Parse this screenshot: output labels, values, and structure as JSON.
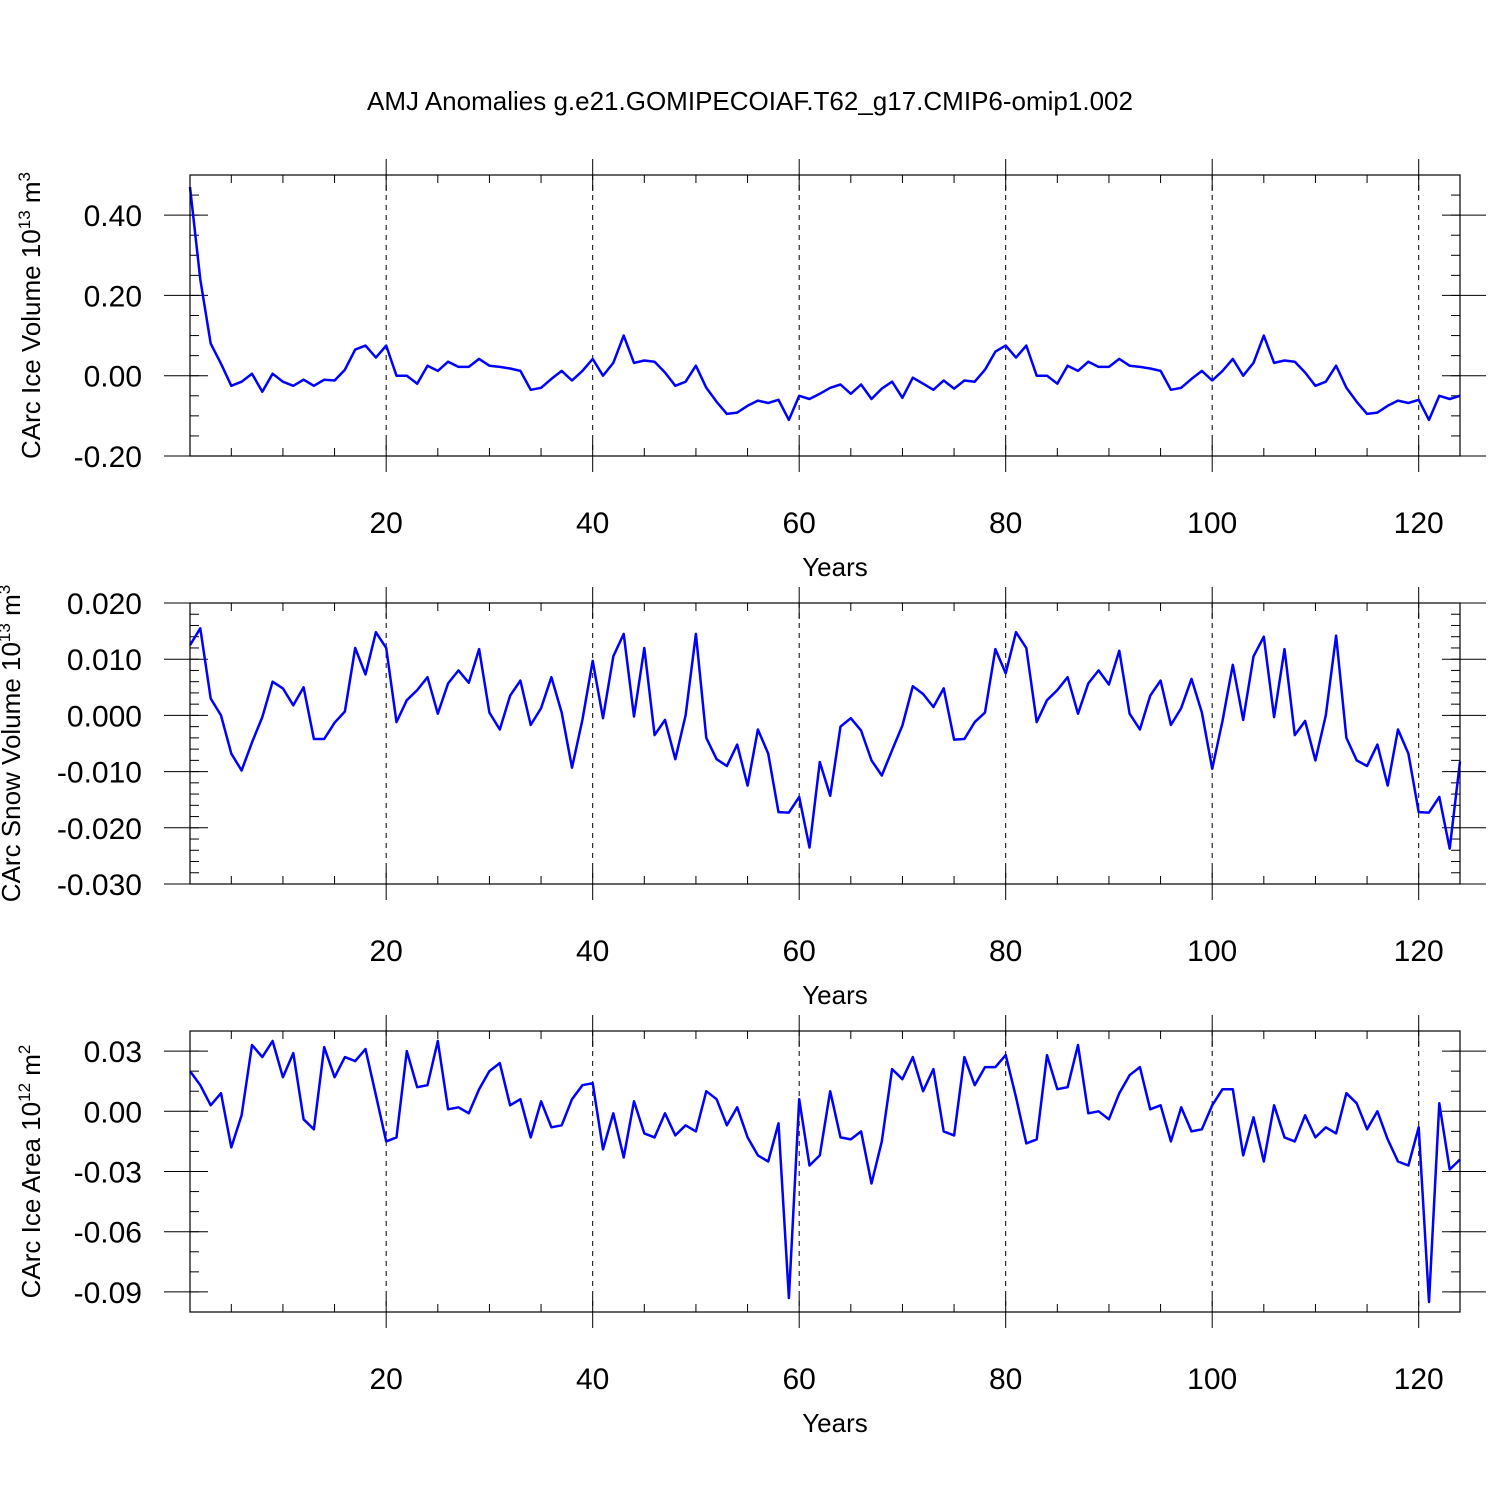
{
  "figure": {
    "title": "AMJ Anomalies g.e21.GOMIPECOIAF.T62_g17.CMIP6-omip1.002"
  },
  "chart_data": [
    {
      "type": "line",
      "title": "AMJ Anomalies g.e21.GOMIPECOIAF.T62_g17.CMIP6-omip1.002",
      "xlabel": "Years",
      "ylabel": "CArc Ice Volume 10^13 m^3",
      "ylabel_base": "CArc Ice Volume 10",
      "ylabel_exp": "13",
      "ylabel_unit": "m",
      "ylabel_unit_exp": "3",
      "xlim": [
        1,
        124
      ],
      "ylim": [
        -0.2,
        0.5
      ],
      "xticks": [
        20,
        40,
        60,
        80,
        100,
        120
      ],
      "xtick_labels": [
        "20",
        "40",
        "60",
        "80",
        "100",
        "120"
      ],
      "yticks": [
        -0.2,
        0.0,
        0.2,
        0.4
      ],
      "ytick_labels": [
        "-0.20",
        "0.00",
        "0.20",
        "0.40"
      ],
      "color": "#0000ff",
      "grid": "vertical dashed at major x ticks",
      "x": [
        1,
        2,
        3,
        4,
        5,
        6,
        7,
        8,
        9,
        10,
        11,
        12,
        13,
        14,
        15,
        16,
        17,
        18,
        19,
        20,
        21,
        22,
        23,
        24,
        25,
        26,
        27,
        28,
        29,
        30,
        31,
        32,
        33,
        34,
        35,
        36,
        37,
        38,
        39,
        40,
        41,
        42,
        43,
        44,
        45,
        46,
        47,
        48,
        49,
        50,
        51,
        52,
        53,
        54,
        55,
        56,
        57,
        58,
        59,
        60,
        61,
        62,
        63,
        64,
        65,
        66,
        67,
        68,
        69,
        70,
        71,
        72,
        73,
        74,
        75,
        76,
        77,
        78,
        79,
        80,
        81,
        82,
        83,
        84,
        85,
        86,
        87,
        88,
        89,
        90,
        91,
        92,
        93,
        94,
        95,
        96,
        97,
        98,
        99,
        100,
        101,
        102,
        103,
        104,
        105,
        106,
        107,
        108,
        109,
        110,
        111,
        112,
        113,
        114,
        115,
        116,
        117,
        118,
        119,
        120,
        121,
        122,
        123,
        124
      ],
      "values": [
        0.47,
        0.24,
        0.08,
        0.03,
        -0.025,
        -0.015,
        0.005,
        -0.04,
        0.005,
        -0.015,
        -0.025,
        -0.01,
        -0.025,
        -0.01,
        -0.012,
        0.015,
        0.065,
        0.075,
        0.045,
        0.075,
        0.0,
        0.0,
        -0.02,
        0.025,
        0.012,
        0.035,
        0.022,
        0.022,
        0.042,
        0.025,
        0.022,
        0.018,
        0.012,
        -0.035,
        -0.03,
        -0.008,
        0.012,
        -0.012,
        0.012,
        0.042,
        0.0,
        0.032,
        0.1,
        0.032,
        0.038,
        0.035,
        0.008,
        -0.025,
        -0.015,
        0.025,
        -0.03,
        -0.065,
        -0.095,
        -0.092,
        -0.075,
        -0.062,
        -0.068,
        -0.06,
        -0.11,
        -0.05,
        -0.058,
        -0.045,
        -0.03,
        -0.022,
        -0.045,
        -0.022,
        -0.058,
        -0.032,
        -0.015,
        -0.055,
        -0.005,
        -0.02,
        -0.035,
        -0.012,
        -0.032,
        -0.012,
        -0.015,
        0.015,
        0.06,
        0.075,
        0.045,
        0.075,
        0.0,
        0.0,
        -0.02,
        0.025,
        0.012,
        0.035,
        0.022,
        0.022,
        0.042,
        0.025,
        0.022,
        0.018,
        0.012,
        -0.035,
        -0.03,
        -0.008,
        0.012,
        -0.012,
        0.012,
        0.042,
        0.0,
        0.032,
        0.1,
        0.032,
        0.038,
        0.035,
        0.008,
        -0.025,
        -0.015,
        0.025,
        -0.03,
        -0.065,
        -0.095,
        -0.092,
        -0.075,
        -0.062,
        -0.068,
        -0.06,
        -0.11,
        -0.05,
        -0.058,
        -0.05
      ]
    },
    {
      "type": "line",
      "xlabel": "Years",
      "ylabel": "CArc Snow Volume 10^13 m^3",
      "ylabel_base": "CArc Snow Volume 10",
      "ylabel_exp": "13",
      "ylabel_unit": "m",
      "ylabel_unit_exp": "3",
      "xlim": [
        1,
        124
      ],
      "ylim": [
        -0.03,
        0.02
      ],
      "xticks": [
        20,
        40,
        60,
        80,
        100,
        120
      ],
      "xtick_labels": [
        "20",
        "40",
        "60",
        "80",
        "100",
        "120"
      ],
      "yticks": [
        -0.03,
        -0.02,
        -0.01,
        0.0,
        0.01,
        0.02
      ],
      "ytick_labels": [
        "-0.030",
        "-0.020",
        "-0.010",
        "0.000",
        "0.010",
        "0.020"
      ],
      "color": "#0000ff",
      "grid": "vertical dashed at major x ticks",
      "x": [
        1,
        2,
        3,
        4,
        5,
        6,
        7,
        8,
        9,
        10,
        11,
        12,
        13,
        14,
        15,
        16,
        17,
        18,
        19,
        20,
        21,
        22,
        23,
        24,
        25,
        26,
        27,
        28,
        29,
        30,
        31,
        32,
        33,
        34,
        35,
        36,
        37,
        38,
        39,
        40,
        41,
        42,
        43,
        44,
        45,
        46,
        47,
        48,
        49,
        50,
        51,
        52,
        53,
        54,
        55,
        56,
        57,
        58,
        59,
        60,
        61,
        62,
        63,
        64,
        65,
        66,
        67,
        68,
        69,
        70,
        71,
        72,
        73,
        74,
        75,
        76,
        77,
        78,
        79,
        80,
        81,
        82,
        83,
        84,
        85,
        86,
        87,
        88,
        89,
        90,
        91,
        92,
        93,
        94,
        95,
        96,
        97,
        98,
        99,
        100,
        101,
        102,
        103,
        104,
        105,
        106,
        107,
        108,
        109,
        110,
        111,
        112,
        113,
        114,
        115,
        116,
        117,
        118,
        119,
        120,
        121,
        122,
        123,
        124
      ],
      "values": [
        0.0125,
        0.0155,
        0.003,
        0.0,
        -0.0068,
        -0.0098,
        -0.0048,
        -0.0003,
        0.006,
        0.0048,
        0.0018,
        0.005,
        -0.0042,
        -0.0042,
        -0.0013,
        0.0007,
        0.012,
        0.0073,
        0.0148,
        0.012,
        -0.0012,
        0.0027,
        0.0045,
        0.0068,
        0.0003,
        0.0057,
        0.008,
        0.0058,
        0.0118,
        0.0005,
        -0.0025,
        0.0035,
        0.0062,
        -0.0017,
        0.0013,
        0.0068,
        0.0005,
        -0.0093,
        -0.0008,
        0.0097,
        -0.0005,
        0.0105,
        0.0145,
        -0.0002,
        0.012,
        -0.0035,
        -0.0008,
        -0.0078,
        0.0,
        0.0145,
        -0.004,
        -0.0078,
        -0.009,
        -0.0052,
        -0.0125,
        -0.0025,
        -0.0068,
        -0.0172,
        -0.0173,
        -0.0145,
        -0.0235,
        -0.0083,
        -0.0143,
        -0.002,
        -0.0005,
        -0.0027,
        -0.008,
        -0.0107,
        -0.0062,
        -0.0018,
        0.0052,
        0.0038,
        0.0015,
        0.0048,
        -0.0043,
        -0.0042,
        -0.0012,
        0.0005,
        0.0118,
        0.0075,
        0.0148,
        0.012,
        -0.0012,
        0.0027,
        0.0045,
        0.0068,
        0.0003,
        0.0057,
        0.008,
        0.0055,
        0.0115,
        0.0003,
        -0.0025,
        0.0035,
        0.0062,
        -0.0017,
        0.0013,
        0.0065,
        0.0005,
        -0.0095,
        -0.001,
        0.009,
        -0.0008,
        0.0105,
        0.014,
        -0.0003,
        0.0118,
        -0.0035,
        -0.001,
        -0.008,
        0.0,
        0.0142,
        -0.004,
        -0.008,
        -0.009,
        -0.0052,
        -0.0125,
        -0.0025,
        -0.0068,
        -0.0172,
        -0.0173,
        -0.0145,
        -0.0237,
        -0.0082
      ]
    },
    {
      "type": "line",
      "xlabel": "Years",
      "ylabel": "CArc Ice Area 10^12 m^2",
      "ylabel_base": "CArc Ice Area 10",
      "ylabel_exp": "12",
      "ylabel_unit": "m",
      "ylabel_unit_exp": "2",
      "xlim": [
        1,
        124
      ],
      "ylim": [
        -0.1,
        0.04
      ],
      "xticks": [
        20,
        40,
        60,
        80,
        100,
        120
      ],
      "xtick_labels": [
        "20",
        "40",
        "60",
        "80",
        "100",
        "120"
      ],
      "yticks": [
        -0.09,
        -0.06,
        -0.03,
        0.0,
        0.03
      ],
      "ytick_labels": [
        "-0.09",
        "-0.06",
        "-0.03",
        "0.00",
        "0.03"
      ],
      "color": "#0000ff",
      "grid": "vertical dashed at major x ticks",
      "x": [
        1,
        2,
        3,
        4,
        5,
        6,
        7,
        8,
        9,
        10,
        11,
        12,
        13,
        14,
        15,
        16,
        17,
        18,
        19,
        20,
        21,
        22,
        23,
        24,
        25,
        26,
        27,
        28,
        29,
        30,
        31,
        32,
        33,
        34,
        35,
        36,
        37,
        38,
        39,
        40,
        41,
        42,
        43,
        44,
        45,
        46,
        47,
        48,
        49,
        50,
        51,
        52,
        53,
        54,
        55,
        56,
        57,
        58,
        59,
        60,
        61,
        62,
        63,
        64,
        65,
        66,
        67,
        68,
        69,
        70,
        71,
        72,
        73,
        74,
        75,
        76,
        77,
        78,
        79,
        80,
        81,
        82,
        83,
        84,
        85,
        86,
        87,
        88,
        89,
        90,
        91,
        92,
        93,
        94,
        95,
        96,
        97,
        98,
        99,
        100,
        101,
        102,
        103,
        104,
        105,
        106,
        107,
        108,
        109,
        110,
        111,
        112,
        113,
        114,
        115,
        116,
        117,
        118,
        119,
        120,
        121,
        122,
        123,
        124
      ],
      "values": [
        0.02,
        0.013,
        0.003,
        0.009,
        -0.018,
        -0.002,
        0.033,
        0.027,
        0.035,
        0.017,
        0.029,
        -0.004,
        -0.009,
        0.032,
        0.017,
        0.027,
        0.025,
        0.031,
        0.008,
        -0.015,
        -0.013,
        0.03,
        0.012,
        0.013,
        0.035,
        0.001,
        0.002,
        -0.001,
        0.011,
        0.02,
        0.024,
        0.003,
        0.006,
        -0.013,
        0.005,
        -0.008,
        -0.007,
        0.006,
        0.013,
        0.014,
        -0.019,
        -0.001,
        -0.023,
        0.005,
        -0.011,
        -0.013,
        -0.001,
        -0.012,
        -0.007,
        -0.01,
        0.01,
        0.006,
        -0.007,
        0.002,
        -0.013,
        -0.022,
        -0.025,
        -0.006,
        -0.093,
        0.006,
        -0.027,
        -0.022,
        0.01,
        -0.013,
        -0.014,
        -0.01,
        -0.036,
        -0.015,
        0.021,
        0.016,
        0.027,
        0.01,
        0.021,
        -0.01,
        -0.012,
        0.027,
        0.013,
        0.022,
        0.022,
        0.028,
        0.007,
        -0.016,
        -0.014,
        0.028,
        0.011,
        0.012,
        0.033,
        -0.001,
        0.0,
        -0.004,
        0.009,
        0.018,
        0.022,
        0.001,
        0.003,
        -0.015,
        0.002,
        -0.01,
        -0.009,
        0.003,
        0.011,
        0.011,
        -0.022,
        -0.003,
        -0.025,
        0.003,
        -0.013,
        -0.015,
        -0.002,
        -0.013,
        -0.008,
        -0.011,
        0.009,
        0.004,
        -0.009,
        0.0,
        -0.014,
        -0.025,
        -0.027,
        -0.008,
        -0.095,
        0.004,
        -0.029,
        -0.024
      ]
    }
  ]
}
